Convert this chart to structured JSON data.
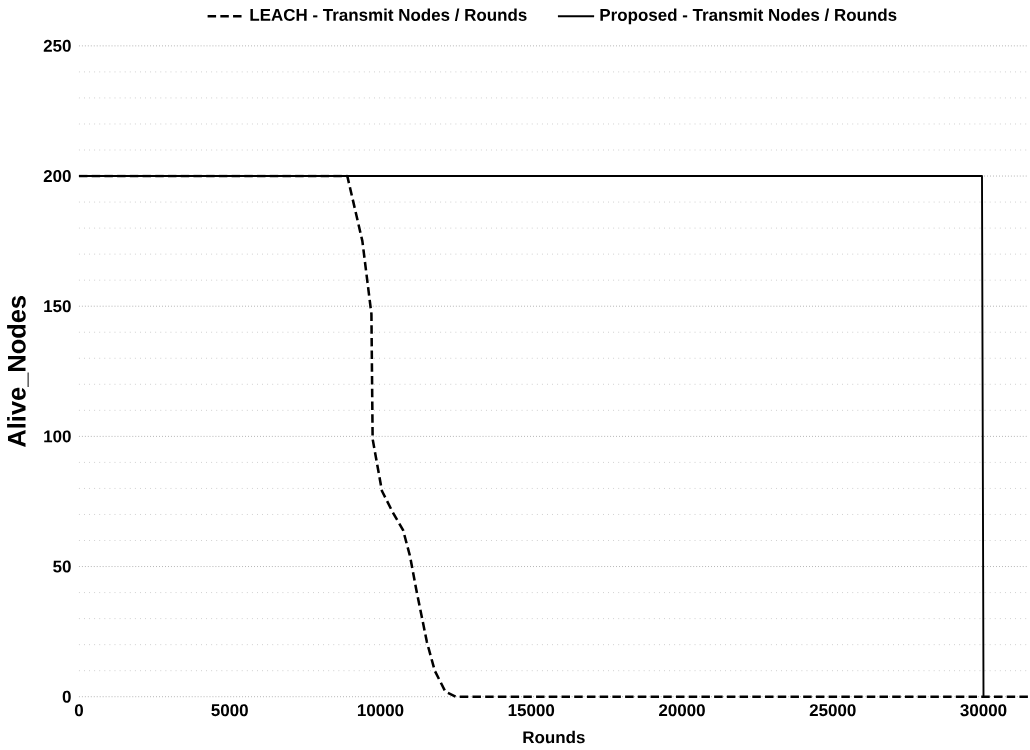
{
  "chart_data": {
    "type": "line",
    "xlabel": "Rounds",
    "ylabel": "Alive_Nodes",
    "xlim": [
      0,
      31500
    ],
    "ylim": [
      0,
      250
    ],
    "xticks": [
      0,
      5000,
      10000,
      15000,
      20000,
      25000,
      30000
    ],
    "yticks": [
      0,
      50,
      100,
      150,
      200,
      250
    ],
    "grid": "y",
    "legend": "top",
    "marker": "none",
    "series": [
      {
        "name": "LEACH - Transmit Nodes / Rounds",
        "color": "#000000",
        "line_style": "dashed",
        "x": [
          0,
          8900,
          9400,
          9700,
          9740,
          10050,
          10400,
          10750,
          10980,
          11190,
          11540,
          11800,
          12150,
          12500,
          31500
        ],
        "values": [
          200,
          200,
          175,
          147,
          99,
          79,
          71,
          64,
          54,
          41,
          21,
          10,
          2,
          0,
          0
        ]
      },
      {
        "name": "Proposed - Transmit Nodes / Rounds",
        "color": "#000000",
        "line_style": "solid",
        "x": [
          0,
          29950,
          30000
        ],
        "values": [
          200,
          200,
          0
        ]
      }
    ]
  }
}
